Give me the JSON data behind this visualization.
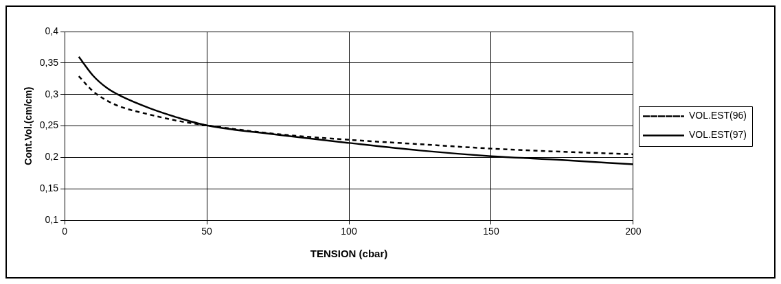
{
  "chart_data": {
    "type": "line",
    "xlabel": "TENSION (cbar)",
    "ylabel": "Cont.Vol.(cm/cm)",
    "x": [
      5,
      10,
      15,
      20,
      30,
      40,
      50,
      75,
      100,
      125,
      150,
      175,
      200
    ],
    "series": [
      {
        "name": "VOL.EST(96)",
        "color": "#000000",
        "line_style": "dashed",
        "values": [
          0.329,
          0.305,
          0.29,
          0.28,
          0.268,
          0.258,
          0.251,
          0.237,
          0.228,
          0.221,
          0.214,
          0.209,
          0.205
        ]
      },
      {
        "name": "VOL.EST(97)",
        "color": "#000000",
        "line_style": "solid",
        "values": [
          0.36,
          0.33,
          0.31,
          0.297,
          0.278,
          0.263,
          0.251,
          0.236,
          0.223,
          0.211,
          0.202,
          0.196,
          0.189
        ]
      }
    ],
    "xlim": [
      0,
      200
    ],
    "xticks": [
      0,
      50,
      100,
      150,
      200
    ],
    "ylim": [
      0.1,
      0.4
    ],
    "yticks": [
      {
        "value": 0.1,
        "label": "0,1"
      },
      {
        "value": 0.15,
        "label": "0,15"
      },
      {
        "value": 0.2,
        "label": "0,2"
      },
      {
        "value": 0.25,
        "label": "0,25"
      },
      {
        "value": 0.3,
        "label": "0,3"
      },
      {
        "value": 0.35,
        "label": "0,35"
      },
      {
        "value": 0.4,
        "label": "0,4"
      }
    ],
    "grid": true,
    "legend": "right",
    "marker": "none"
  }
}
